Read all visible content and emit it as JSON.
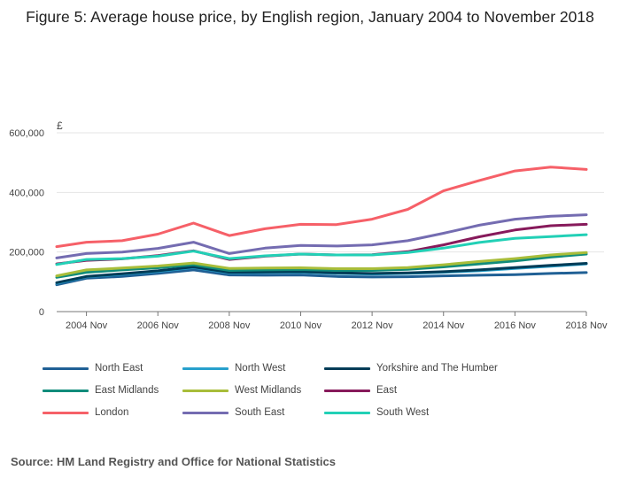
{
  "title": "Figure 5: Average house price, by English region, January 2004 to November 2018",
  "source": "Source: HM Land Registry and Office for National Statistics",
  "chart_data": {
    "type": "line",
    "title": "Figure 5: Average house price, by English region, January 2004 to November 2018",
    "ylabel": "£",
    "xlabel": "",
    "ylim": [
      0,
      600000
    ],
    "xlim": [
      "2004-01",
      "2018-11"
    ],
    "y_ticks": [
      "0",
      "200,000",
      "400,000",
      "600,000"
    ],
    "y_tick_values": [
      0,
      200000,
      400000,
      600000
    ],
    "x_ticks": [
      "2004 Nov",
      "2006 Nov",
      "2008 Nov",
      "2010 Nov",
      "2012 Nov",
      "2014 Nov",
      "2016 Nov",
      "2018 Nov"
    ],
    "x_tick_dates": [
      "2004-11",
      "2006-11",
      "2008-11",
      "2010-11",
      "2012-11",
      "2014-11",
      "2016-11",
      "2018-11"
    ],
    "grid": "horizontal",
    "legend_position": "bottom",
    "series": [
      {
        "name": "North East",
        "color": "#206095",
        "x": [
          "2004-01",
          "2004-11",
          "2005-11",
          "2006-11",
          "2007-11",
          "2008-11",
          "2009-11",
          "2010-11",
          "2011-11",
          "2012-11",
          "2013-11",
          "2014-11",
          "2015-11",
          "2016-11",
          "2017-11",
          "2018-11"
        ],
        "values": [
          90000,
          112000,
          118000,
          128000,
          140000,
          123000,
          122000,
          123000,
          118000,
          116000,
          117000,
          120000,
          122000,
          124000,
          128000,
          131000
        ]
      },
      {
        "name": "North West",
        "color": "#27A0CC",
        "x": [
          "2004-01",
          "2004-11",
          "2005-11",
          "2006-11",
          "2007-11",
          "2008-11",
          "2009-11",
          "2010-11",
          "2011-11",
          "2012-11",
          "2013-11",
          "2014-11",
          "2015-11",
          "2016-11",
          "2017-11",
          "2018-11"
        ],
        "values": [
          95000,
          117000,
          125000,
          135000,
          148000,
          130000,
          131000,
          132000,
          128000,
          126000,
          128000,
          132000,
          137000,
          145000,
          152000,
          160000
        ]
      },
      {
        "name": "Yorkshire and The Humber",
        "color": "#003C57",
        "x": [
          "2004-01",
          "2004-11",
          "2005-11",
          "2006-11",
          "2007-11",
          "2008-11",
          "2009-11",
          "2010-11",
          "2011-11",
          "2012-11",
          "2013-11",
          "2014-11",
          "2015-11",
          "2016-11",
          "2017-11",
          "2018-11"
        ],
        "values": [
          97000,
          118000,
          127000,
          137000,
          150000,
          132000,
          133000,
          134000,
          130000,
          128000,
          130000,
          134000,
          140000,
          148000,
          155000,
          162000
        ]
      },
      {
        "name": "East Midlands",
        "color": "#118C7B",
        "x": [
          "2004-01",
          "2004-11",
          "2005-11",
          "2006-11",
          "2007-11",
          "2008-11",
          "2009-11",
          "2010-11",
          "2011-11",
          "2012-11",
          "2013-11",
          "2014-11",
          "2015-11",
          "2016-11",
          "2017-11",
          "2018-11"
        ],
        "values": [
          115000,
          132000,
          140000,
          147000,
          157000,
          138000,
          140000,
          141000,
          138000,
          138000,
          142000,
          150000,
          160000,
          170000,
          183000,
          193000
        ]
      },
      {
        "name": "West Midlands",
        "color": "#A8BD3A",
        "x": [
          "2004-01",
          "2004-11",
          "2005-11",
          "2006-11",
          "2007-11",
          "2008-11",
          "2009-11",
          "2010-11",
          "2011-11",
          "2012-11",
          "2013-11",
          "2014-11",
          "2015-11",
          "2016-11",
          "2017-11",
          "2018-11"
        ],
        "values": [
          120000,
          140000,
          146000,
          153000,
          163000,
          145000,
          146000,
          147000,
          144000,
          144000,
          148000,
          157000,
          168000,
          178000,
          190000,
          198000
        ]
      },
      {
        "name": "East",
        "color": "#871A5B",
        "x": [
          "2004-01",
          "2004-11",
          "2005-11",
          "2006-11",
          "2007-11",
          "2008-11",
          "2009-11",
          "2010-11",
          "2011-11",
          "2012-11",
          "2013-11",
          "2014-11",
          "2015-11",
          "2016-11",
          "2017-11",
          "2018-11"
        ],
        "values": [
          160000,
          172000,
          177000,
          188000,
          204000,
          175000,
          186000,
          193000,
          190000,
          191000,
          201000,
          224000,
          251000,
          274000,
          288000,
          293000
        ]
      },
      {
        "name": "London",
        "color": "#F66068",
        "x": [
          "2004-01",
          "2004-11",
          "2005-11",
          "2006-11",
          "2007-11",
          "2008-11",
          "2009-11",
          "2010-11",
          "2011-11",
          "2012-11",
          "2013-11",
          "2014-11",
          "2015-11",
          "2016-11",
          "2017-11",
          "2018-11"
        ],
        "values": [
          218000,
          233000,
          238000,
          260000,
          297000,
          255000,
          278000,
          293000,
          292000,
          310000,
          343000,
          405000,
          440000,
          472000,
          485000,
          477000
        ]
      },
      {
        "name": "South East",
        "color": "#746CB1",
        "x": [
          "2004-01",
          "2004-11",
          "2005-11",
          "2006-11",
          "2007-11",
          "2008-11",
          "2009-11",
          "2010-11",
          "2011-11",
          "2012-11",
          "2013-11",
          "2014-11",
          "2015-11",
          "2016-11",
          "2017-11",
          "2018-11"
        ],
        "values": [
          180000,
          195000,
          200000,
          212000,
          233000,
          195000,
          213000,
          222000,
          220000,
          224000,
          238000,
          263000,
          290000,
          310000,
          320000,
          325000
        ]
      },
      {
        "name": "South West",
        "color": "#22D0B6",
        "x": [
          "2004-01",
          "2004-11",
          "2005-11",
          "2006-11",
          "2007-11",
          "2008-11",
          "2009-11",
          "2010-11",
          "2011-11",
          "2012-11",
          "2013-11",
          "2014-11",
          "2015-11",
          "2016-11",
          "2017-11",
          "2018-11"
        ],
        "values": [
          158000,
          175000,
          178000,
          186000,
          203000,
          178000,
          187000,
          193000,
          190000,
          190000,
          198000,
          213000,
          232000,
          246000,
          252000,
          258000
        ]
      }
    ]
  }
}
